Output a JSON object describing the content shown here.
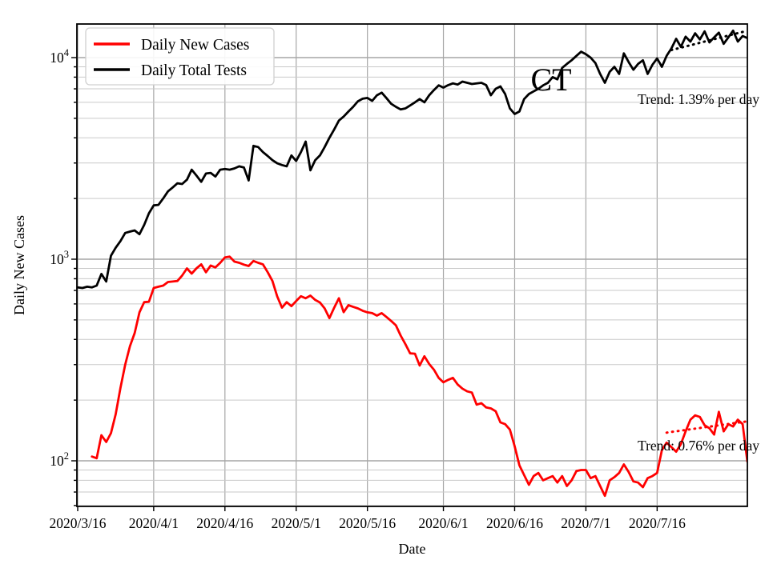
{
  "figure": {
    "title": "CT",
    "xlabel": "Date",
    "ylabel": "Daily New Cases",
    "background": "#ffffff",
    "grid_major_color": "#a6a6a6",
    "grid_minor_color": "#c9c9c9",
    "frame_color": "#000000"
  },
  "legend": {
    "items": [
      {
        "label": "Daily New Cases",
        "color": "#ff0000"
      },
      {
        "label": "Daily Total Tests",
        "color": "#000000"
      }
    ]
  },
  "annotations": [
    {
      "text": "Trend: 1.39% per day"
    },
    {
      "text": "Trend: 0.76% per day"
    }
  ],
  "chart_data": {
    "type": "line",
    "title": "CT",
    "xlabel": "Date",
    "ylabel": "Daily New Cases",
    "y_scale": "log",
    "ylim": [
      59.4,
      14678
    ],
    "grid": true,
    "legend_position": "upper left",
    "x_start_date": "2020/3/16",
    "x_days_total": 141,
    "x_tick_labels": [
      "2020/3/16",
      "2020/4/1",
      "2020/4/16",
      "2020/5/1",
      "2020/5/16",
      "2020/6/1",
      "2020/6/16",
      "2020/7/1",
      "2020/7/16"
    ],
    "x_tick_days": [
      0,
      16,
      31,
      46,
      61,
      77,
      92,
      107,
      122
    ],
    "y_major_ticks": [
      100,
      1000,
      10000
    ],
    "y_major_tick_exponents": [
      2,
      3,
      4
    ],
    "series": [
      {
        "name": "Daily Total Tests",
        "color": "#000000",
        "values": [
          725,
          720,
          730,
          725,
          740,
          845,
          775,
          1040,
          1140,
          1230,
          1350,
          1370,
          1390,
          1330,
          1480,
          1690,
          1850,
          1860,
          2000,
          2170,
          2270,
          2380,
          2360,
          2480,
          2780,
          2600,
          2420,
          2660,
          2680,
          2570,
          2780,
          2800,
          2780,
          2820,
          2890,
          2850,
          2460,
          3650,
          3600,
          3400,
          3250,
          3100,
          2990,
          2930,
          2890,
          3270,
          3070,
          3400,
          3830,
          2760,
          3100,
          3270,
          3600,
          4000,
          4400,
          4870,
          5100,
          5400,
          5700,
          6070,
          6250,
          6310,
          6100,
          6500,
          6700,
          6300,
          5900,
          5700,
          5530,
          5600,
          5790,
          6000,
          6230,
          6000,
          6500,
          6900,
          7280,
          7100,
          7300,
          7450,
          7350,
          7600,
          7500,
          7400,
          7450,
          7500,
          7300,
          6500,
          7000,
          7200,
          6600,
          5600,
          5250,
          5400,
          6230,
          6600,
          6800,
          7000,
          7280,
          7500,
          8000,
          7800,
          8900,
          9300,
          9700,
          10200,
          10700,
          10400,
          10000,
          9400,
          8300,
          7500,
          8500,
          9000,
          8300,
          10500,
          9500,
          8700,
          9300,
          9700,
          8300,
          9200,
          9900,
          9000,
          10200,
          11100,
          12400,
          11300,
          12700,
          12000,
          13200,
          12300,
          13500,
          11900,
          12600,
          13300,
          11700,
          12600,
          13600,
          12000,
          12800,
          12500
        ]
      },
      {
        "name": "Daily New Cases",
        "color": "#ff0000",
        "values": [
          null,
          null,
          null,
          105,
          103,
          134,
          124,
          137,
          170,
          230,
          300,
          370,
          430,
          545,
          612,
          615,
          720,
          730,
          740,
          771,
          775,
          780,
          830,
          900,
          848,
          900,
          943,
          862,
          930,
          910,
          960,
          1020,
          1030,
          973,
          960,
          940,
          925,
          980,
          960,
          943,
          862,
          780,
          655,
          575,
          612,
          585,
          620,
          655,
          640,
          660,
          628,
          610,
          570,
          510,
          575,
          640,
          546,
          592,
          580,
          570,
          555,
          545,
          540,
          525,
          540,
          517,
          494,
          470,
          418,
          379,
          341,
          340,
          297,
          330,
          302,
          283,
          258,
          245,
          252,
          258,
          239,
          228,
          221,
          218,
          190,
          193,
          184,
          182,
          176,
          155,
          152,
          143,
          118,
          95,
          85,
          76,
          84,
          87,
          80,
          82,
          84,
          78,
          84,
          75,
          80,
          89,
          90,
          90,
          82,
          84,
          75,
          67,
          80,
          83,
          87,
          96,
          88,
          79,
          78,
          74,
          82,
          84,
          87,
          113,
          123,
          117,
          111,
          121,
          140,
          160,
          168,
          165,
          150,
          145,
          135,
          175,
          140,
          152,
          148,
          160,
          152,
          99
        ]
      }
    ],
    "trend_lines": [
      {
        "label": "Trend: 1.39% per day",
        "series": "Daily Total Tests",
        "color": "#000000",
        "rate_pct_per_day": 1.39,
        "start_day": 125,
        "start_value": 10900,
        "end_day": 141,
        "style": "dotted"
      },
      {
        "label": "Trend: 0.76% per day",
        "series": "Daily New Cases",
        "color": "#ff0000",
        "rate_pct_per_day": 0.76,
        "start_day": 124,
        "start_value": 138,
        "end_day": 141,
        "style": "dotted"
      }
    ]
  }
}
